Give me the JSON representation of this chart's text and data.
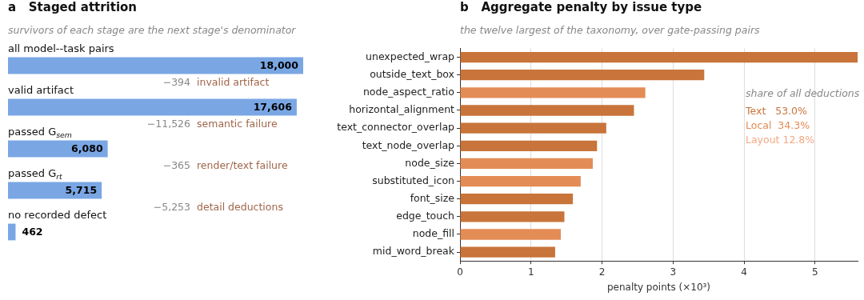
{
  "chart_data": [
    {
      "type": "bar",
      "orientation": "horizontal",
      "title": "a   Staged attrition",
      "subtitle": "survivors of each stage are the next stage's denominator",
      "categories": [
        "all model--task pairs",
        "valid artifact",
        "passed G$_{sem}$",
        "passed G$_{rt}$",
        "no recorded defect"
      ],
      "values": [
        18000,
        17606,
        6080,
        5715,
        462
      ],
      "color": "#7aa7e4",
      "value_labels": [
        "18,000",
        "17,606",
        "6,080",
        "5,715",
        "462"
      ],
      "xlim": [
        0,
        18000
      ],
      "annotations": [
        "−394",
        "invalid artifact",
        "−11,526",
        "semantic failure",
        "−365",
        "render/text failure",
        "−5,253",
        "detail deductions"
      ]
    },
    {
      "type": "bar",
      "orientation": "horizontal",
      "title": "b   Aggregate penalty by issue type",
      "subtitle": "the twelve largest of the taxonomy, over gate-passing pairs",
      "xlabel": "penalty points (×10³)",
      "categories": [
        "unexpected_wrap",
        "outside_text_box",
        "node_aspect_ratio",
        "horizontal_alignment",
        "text_connector_overlap",
        "text_node_overlap",
        "node_size",
        "substituted_icon",
        "font_size",
        "edge_touch",
        "node_fill",
        "mid_word_break"
      ],
      "series": [
        {
          "name": "Text   53.0%",
          "color": "#c8743a",
          "values": [
            5.6,
            3.44,
            null,
            2.45,
            2.06,
            1.93,
            null,
            null,
            1.59,
            1.47,
            null,
            1.34
          ]
        },
        {
          "name": "Local  34.3%",
          "color": "#e48c55",
          "values": [
            null,
            null,
            2.61,
            null,
            null,
            null,
            1.87,
            1.7,
            null,
            null,
            1.42,
            null
          ]
        },
        {
          "name": "Layout 12.8%",
          "color": "#f4a983",
          "values": [
            null,
            null,
            null,
            null,
            null,
            null,
            null,
            null,
            null,
            null,
            null,
            null
          ]
        }
      ],
      "legend": "right",
      "legend_title": "share of all deductions",
      "xlim": [
        0,
        5.6
      ],
      "xticks": [
        0,
        1,
        2,
        3,
        4,
        5
      ],
      "grid": "x"
    }
  ]
}
